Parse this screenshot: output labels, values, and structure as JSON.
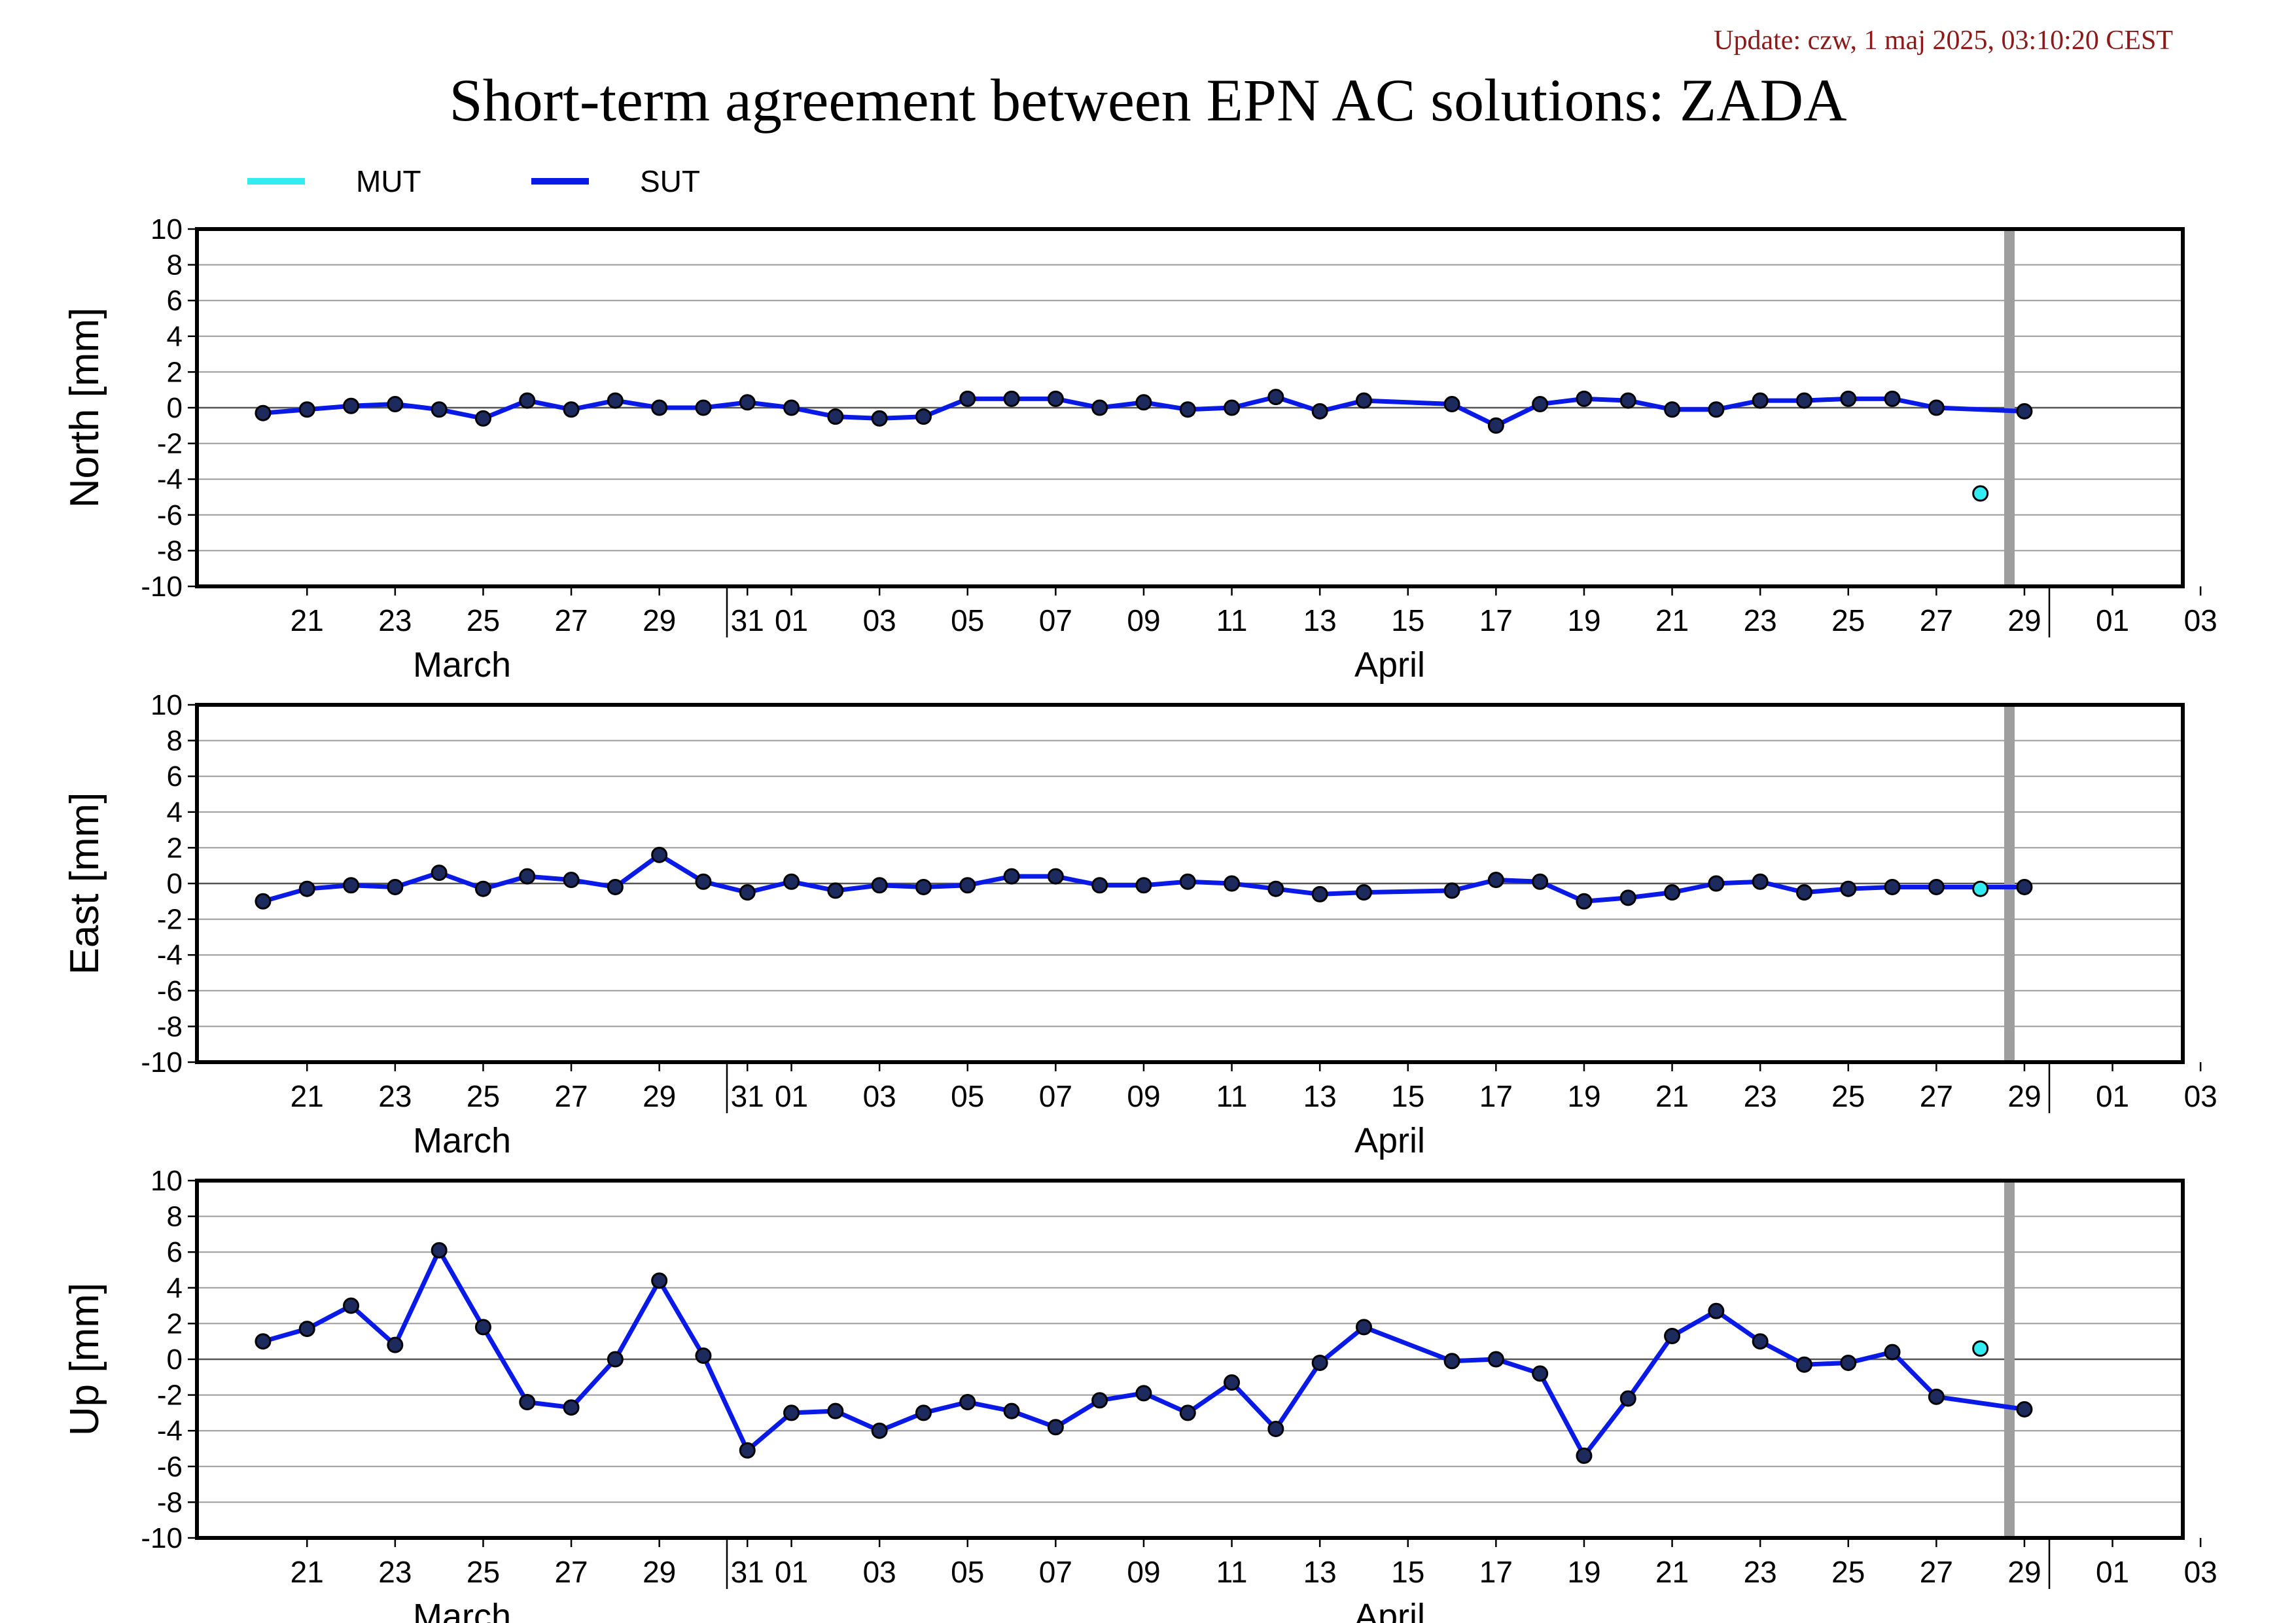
{
  "update_text": "Update: czw, 1 maj 2025, 03:10:20 CEST",
  "title": "Short-term agreement between EPN AC solutions: ZADA",
  "legend": [
    {
      "name": "MUT",
      "color": "#33ecf2"
    },
    {
      "name": "SUT",
      "color": "#0a1ae6"
    }
  ],
  "chart_data": [
    {
      "type": "line",
      "ylabel": "North [mm]",
      "ylim": [
        -10,
        10
      ],
      "yticks": [
        10,
        8,
        6,
        4,
        2,
        0,
        -2,
        -4,
        -6,
        -8,
        -10
      ],
      "x_tick_labels": [
        "21",
        "23",
        "25",
        "27",
        "29",
        "31",
        "01",
        "03",
        "05",
        "07",
        "09",
        "11",
        "13",
        "15",
        "17",
        "19",
        "21",
        "23",
        "25",
        "27",
        "29",
        "01",
        "03"
      ],
      "month_labels": [
        "March",
        "April"
      ],
      "grid": "horizontal",
      "series": [
        {
          "name": "SUT",
          "x": [
            "2025-03-20",
            "2025-03-21",
            "2025-03-22",
            "2025-03-23",
            "2025-03-24",
            "2025-03-25",
            "2025-03-26",
            "2025-03-27",
            "2025-03-28",
            "2025-03-29",
            "2025-03-30",
            "2025-03-31",
            "2025-04-01",
            "2025-04-02",
            "2025-04-03",
            "2025-04-04",
            "2025-04-05",
            "2025-04-06",
            "2025-04-07",
            "2025-04-08",
            "2025-04-09",
            "2025-04-10",
            "2025-04-11",
            "2025-04-12",
            "2025-04-13",
            "2025-04-14",
            "2025-04-16",
            "2025-04-17",
            "2025-04-18",
            "2025-04-19",
            "2025-04-20",
            "2025-04-21",
            "2025-04-22",
            "2025-04-23",
            "2025-04-24",
            "2025-04-25",
            "2025-04-26",
            "2025-04-27",
            "2025-04-29"
          ],
          "values": [
            -0.3,
            -0.1,
            0.1,
            0.2,
            -0.1,
            -0.6,
            0.4,
            -0.1,
            0.4,
            0.0,
            0.0,
            0.3,
            0.0,
            -0.5,
            -0.6,
            -0.5,
            0.5,
            0.5,
            0.5,
            0.0,
            0.3,
            -0.1,
            0.0,
            0.6,
            -0.2,
            0.4,
            0.2,
            -1.0,
            0.2,
            0.5,
            0.4,
            -0.1,
            -0.1,
            0.4,
            0.4,
            0.5,
            0.5,
            0.0,
            -0.2
          ]
        },
        {
          "name": "MUT",
          "x": [
            "2025-04-28"
          ],
          "values": [
            -4.8
          ]
        }
      ]
    },
    {
      "type": "line",
      "ylabel": "East [mm]",
      "ylim": [
        -10,
        10
      ],
      "yticks": [
        10,
        8,
        6,
        4,
        2,
        0,
        -2,
        -4,
        -6,
        -8,
        -10
      ],
      "x_tick_labels": [
        "21",
        "23",
        "25",
        "27",
        "29",
        "31",
        "01",
        "03",
        "05",
        "07",
        "09",
        "11",
        "13",
        "15",
        "17",
        "19",
        "21",
        "23",
        "25",
        "27",
        "29",
        "01",
        "03"
      ],
      "month_labels": [
        "March",
        "April"
      ],
      "grid": "horizontal",
      "series": [
        {
          "name": "SUT",
          "x": [
            "2025-03-20",
            "2025-03-21",
            "2025-03-22",
            "2025-03-23",
            "2025-03-24",
            "2025-03-25",
            "2025-03-26",
            "2025-03-27",
            "2025-03-28",
            "2025-03-29",
            "2025-03-30",
            "2025-03-31",
            "2025-04-01",
            "2025-04-02",
            "2025-04-03",
            "2025-04-04",
            "2025-04-05",
            "2025-04-06",
            "2025-04-07",
            "2025-04-08",
            "2025-04-09",
            "2025-04-10",
            "2025-04-11",
            "2025-04-12",
            "2025-04-13",
            "2025-04-14",
            "2025-04-16",
            "2025-04-17",
            "2025-04-18",
            "2025-04-19",
            "2025-04-20",
            "2025-04-21",
            "2025-04-22",
            "2025-04-23",
            "2025-04-24",
            "2025-04-25",
            "2025-04-26",
            "2025-04-27",
            "2025-04-29"
          ],
          "values": [
            -1.0,
            -0.3,
            -0.1,
            -0.2,
            0.6,
            -0.3,
            0.4,
            0.2,
            -0.2,
            1.6,
            0.1,
            -0.5,
            0.1,
            -0.4,
            -0.1,
            -0.2,
            -0.1,
            0.4,
            0.4,
            -0.1,
            -0.1,
            0.1,
            0.0,
            -0.3,
            -0.6,
            -0.5,
            -0.4,
            0.2,
            0.1,
            -1.0,
            -0.8,
            -0.5,
            0.0,
            0.1,
            -0.5,
            -0.3,
            -0.2,
            -0.2,
            -0.2
          ]
        },
        {
          "name": "MUT",
          "x": [
            "2025-04-28"
          ],
          "values": [
            -0.3
          ]
        }
      ]
    },
    {
      "type": "line",
      "ylabel": "Up [mm]",
      "ylim": [
        -10,
        10
      ],
      "yticks": [
        10,
        8,
        6,
        4,
        2,
        0,
        -2,
        -4,
        -6,
        -8,
        -10
      ],
      "x_tick_labels": [
        "21",
        "23",
        "25",
        "27",
        "29",
        "31",
        "01",
        "03",
        "05",
        "07",
        "09",
        "11",
        "13",
        "15",
        "17",
        "19",
        "21",
        "23",
        "25",
        "27",
        "29",
        "01",
        "03"
      ],
      "month_labels": [
        "March",
        "April"
      ],
      "grid": "horizontal",
      "series": [
        {
          "name": "SUT",
          "x": [
            "2025-03-20",
            "2025-03-21",
            "2025-03-22",
            "2025-03-23",
            "2025-03-24",
            "2025-03-25",
            "2025-03-26",
            "2025-03-27",
            "2025-03-28",
            "2025-03-29",
            "2025-03-30",
            "2025-03-31",
            "2025-04-01",
            "2025-04-02",
            "2025-04-03",
            "2025-04-04",
            "2025-04-05",
            "2025-04-06",
            "2025-04-07",
            "2025-04-08",
            "2025-04-09",
            "2025-04-10",
            "2025-04-11",
            "2025-04-12",
            "2025-04-13",
            "2025-04-14",
            "2025-04-16",
            "2025-04-17",
            "2025-04-18",
            "2025-04-19",
            "2025-04-20",
            "2025-04-21",
            "2025-04-22",
            "2025-04-23",
            "2025-04-24",
            "2025-04-25",
            "2025-04-26",
            "2025-04-27",
            "2025-04-29"
          ],
          "values": [
            1.0,
            1.7,
            3.0,
            0.8,
            6.1,
            1.8,
            -2.4,
            -2.7,
            0.0,
            4.4,
            0.2,
            -5.1,
            -3.0,
            -2.9,
            -4.0,
            -3.0,
            -2.4,
            -2.9,
            -3.8,
            -2.3,
            -1.9,
            -3.0,
            -1.3,
            -3.9,
            -0.2,
            1.8,
            -0.1,
            0.0,
            -0.8,
            -5.4,
            -2.2,
            1.3,
            2.7,
            1.0,
            -0.3,
            -0.2,
            0.4,
            -2.1,
            -2.8
          ]
        },
        {
          "name": "MUT",
          "x": [
            "2025-04-28"
          ],
          "values": [
            0.6
          ]
        }
      ]
    }
  ]
}
